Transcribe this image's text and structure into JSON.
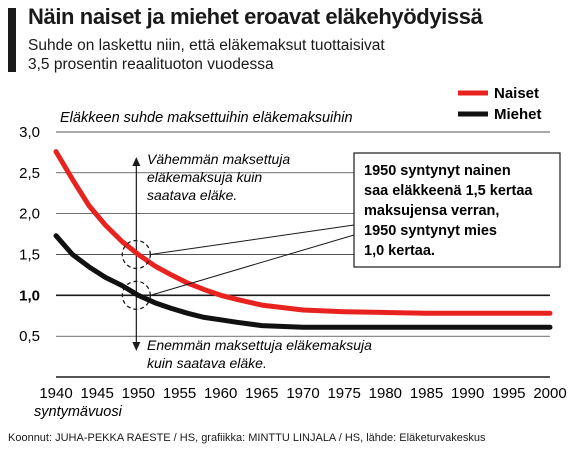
{
  "header": {
    "title": "Näin naiset ja miehet eroavat eläkehyödyissä",
    "subtitle_lines": [
      "Suhde on laskettu niin, että eläkemaksut tuottaisivat",
      "3,5 prosentin reaalituoton vuodessa"
    ]
  },
  "source": "Koonnut: JUHA-PEKKA RAESTE / HS, grafiikka: MINTTU LINJALA / HS, lähde: Eläketurvakeskus",
  "chart_data": {
    "type": "line",
    "title": "Näin naiset ja miehet eroavat eläkehyödyissä",
    "ylabel": "Eläkkeen suhde maksettuihin eläkemaksuihin",
    "xlabel": "syntymävuosi",
    "xlim": [
      1940,
      2000
    ],
    "ylim": [
      0,
      3.0
    ],
    "x_ticks": [
      1940,
      1945,
      1950,
      1955,
      1960,
      1965,
      1970,
      1975,
      1980,
      1985,
      1990,
      1995,
      2000
    ],
    "y_ticks": [
      "0,5",
      "1,0",
      "1,5",
      "2,0",
      "2,5",
      "3,0"
    ],
    "y_tick_values": [
      0.5,
      1.0,
      1.5,
      2.0,
      2.5,
      3.0
    ],
    "reference_line": 1.0,
    "grid": "horizontal",
    "legend_position": "top-right",
    "x": [
      1940,
      1942,
      1944,
      1946,
      1948,
      1950,
      1952,
      1954,
      1956,
      1958,
      1960,
      1962,
      1965,
      1970,
      1975,
      1980,
      1985,
      1990,
      1995,
      2000
    ],
    "series": [
      {
        "name": "Naiset",
        "color": "#e8231f",
        "values": [
          2.76,
          2.42,
          2.1,
          1.86,
          1.66,
          1.5,
          1.36,
          1.25,
          1.15,
          1.07,
          1.0,
          0.95,
          0.88,
          0.82,
          0.8,
          0.79,
          0.78,
          0.78,
          0.78,
          0.78
        ]
      },
      {
        "name": "Miehet",
        "color": "#111111",
        "values": [
          1.73,
          1.5,
          1.35,
          1.22,
          1.12,
          1.0,
          0.91,
          0.84,
          0.78,
          0.73,
          0.7,
          0.67,
          0.63,
          0.61,
          0.61,
          0.61,
          0.61,
          0.61,
          0.61,
          0.61
        ]
      }
    ],
    "annotations": {
      "above": [
        "Vähemmän maksettuja",
        "eläkemaksuja kuin",
        "saatava eläke."
      ],
      "below": [
        "Enemmän maksettuja eläkemaksuja",
        "kuin saatava eläke."
      ],
      "callout": [
        "1950 syntynyt nainen",
        "saa eläkkeenä 1,5 kertaa",
        "maksujensa verran,",
        "1950 syntynyt mies",
        "1,0 kertaa."
      ],
      "marker_year": 1950,
      "marker_values": [
        1.5,
        1.0
      ]
    }
  }
}
